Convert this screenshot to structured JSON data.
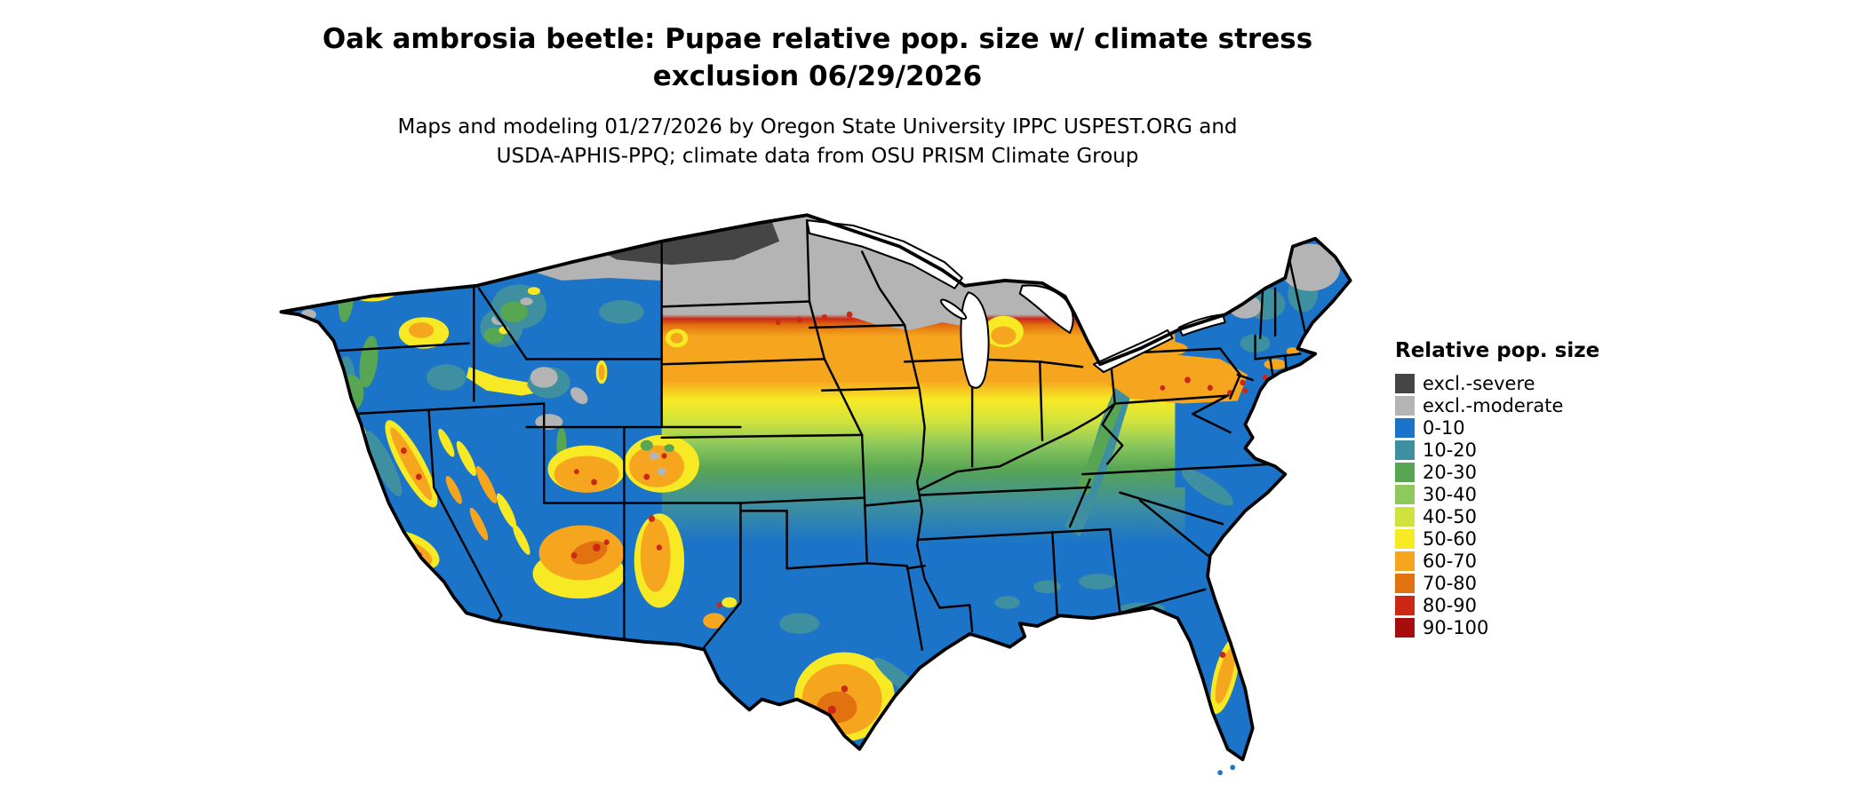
{
  "title": {
    "line1": "Oak ambrosia beetle: Pupae relative pop. size w/ climate stress",
    "line2": "exclusion 06/29/2026"
  },
  "subtitle": {
    "line1": "Maps and modeling 01/27/2026 by Oregon State University IPPC USPEST.ORG and",
    "line2": "USDA-APHIS-PPQ; climate data from OSU PRISM Climate Group"
  },
  "map": {
    "region": "Contiguous United States"
  },
  "legend": {
    "title": "Relative pop. size",
    "items": [
      {
        "label": "excl.-severe",
        "color": "#454545"
      },
      {
        "label": "excl.-moderate",
        "color": "#b4b4b4"
      },
      {
        "label": "0-10",
        "color": "#1b74c8"
      },
      {
        "label": "10-20",
        "color": "#3e8fa0"
      },
      {
        "label": "20-30",
        "color": "#58a553"
      },
      {
        "label": "30-40",
        "color": "#8dc95c"
      },
      {
        "label": "40-50",
        "color": "#cfe23d"
      },
      {
        "label": "50-60",
        "color": "#f7ea25"
      },
      {
        "label": "60-70",
        "color": "#f6a61e"
      },
      {
        "label": "70-80",
        "color": "#e2710f"
      },
      {
        "label": "80-90",
        "color": "#cb2916"
      },
      {
        "label": "90-100",
        "color": "#a70d0d"
      }
    ]
  }
}
